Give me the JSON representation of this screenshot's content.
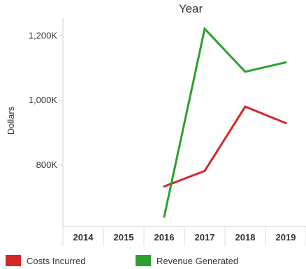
{
  "chart_data": {
    "type": "line",
    "title": "Year",
    "ylabel": "Dollars",
    "categories": [
      "2014",
      "2015",
      "2016",
      "2017",
      "2018",
      "2019"
    ],
    "y_ticks": [
      {
        "value": 800000,
        "label": "800K"
      },
      {
        "value": 1000000,
        "label": "1,000K"
      },
      {
        "value": 1200000,
        "label": "1,200K"
      }
    ],
    "ylim": [
      610000,
      1255000
    ],
    "grid": false,
    "legend_position": "bottom",
    "series": [
      {
        "name": "Costs Incurred",
        "color": "#d62728",
        "values": [
          null,
          null,
          734000,
          782000,
          981000,
          930000
        ]
      },
      {
        "name": "Revenue Generated",
        "color": "#2ca02c",
        "values": [
          null,
          null,
          640000,
          1222000,
          1089000,
          1118000
        ]
      }
    ]
  }
}
